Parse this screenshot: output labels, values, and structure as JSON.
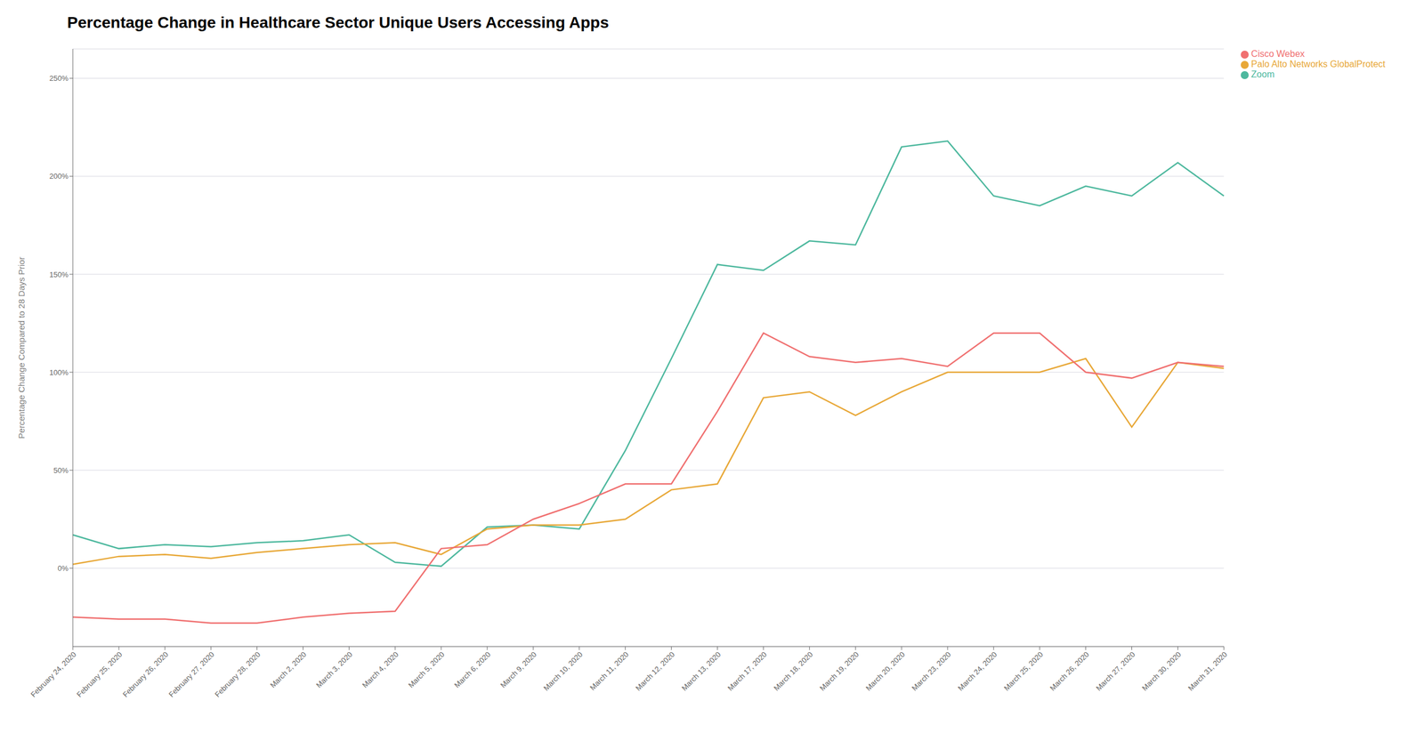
{
  "chart_data": {
    "type": "line",
    "title": "Percentage Change in Healthcare Sector Unique Users Accessing Apps",
    "ylabel": "Percentage Change Compared to 28 Days Prior",
    "categories": [
      "February 24, 2020",
      "February 25, 2020",
      "February 26, 2020",
      "February 27, 2020",
      "February 28, 2020",
      "March 2, 2020",
      "March 3, 2020",
      "March 4, 2020",
      "March 5, 2020",
      "March 6, 2020",
      "March 9, 2020",
      "March 10, 2020",
      "March 11, 2020",
      "March 12, 2020",
      "March 13, 2020",
      "March 17, 2020",
      "March 18, 2020",
      "March 19, 2020",
      "March 20, 2020",
      "March 23, 2020",
      "March 24, 2020",
      "March 25, 2020",
      "March 26, 2020",
      "March 27, 2020",
      "March 30, 2020",
      "March 31, 2020"
    ],
    "series": [
      {
        "name": "Zoom",
        "color": "#4db89e",
        "values": [
          17,
          10,
          12,
          11,
          13,
          14,
          17,
          3,
          1,
          21,
          22,
          20,
          60,
          107,
          155,
          152,
          167,
          165,
          215,
          218,
          190,
          185,
          195,
          190,
          207,
          190
        ]
      },
      {
        "name": "Palo Alto Networks GlobalProtect",
        "color": "#e8a838",
        "values": [
          2,
          6,
          7,
          5,
          8,
          10,
          12,
          13,
          7,
          20,
          22,
          22,
          25,
          40,
          43,
          87,
          90,
          78,
          90,
          100,
          100,
          100,
          107,
          72,
          105,
          102
        ]
      },
      {
        "name": "Cisco Webex",
        "color": "#f07070",
        "values": [
          -25,
          -26,
          -26,
          -28,
          -28,
          -25,
          -23,
          -22,
          10,
          12,
          25,
          33,
          43,
          43,
          80,
          120,
          108,
          105,
          107,
          103,
          120,
          120,
          100,
          97,
          105,
          103
        ]
      }
    ],
    "ylim": [
      -40,
      265
    ],
    "yticks": [
      {
        "value": 0,
        "label": "0%"
      },
      {
        "value": 50,
        "label": "50%"
      },
      {
        "value": 100,
        "label": "100%"
      },
      {
        "value": 150,
        "label": "150%"
      },
      {
        "value": 200,
        "label": "200%"
      },
      {
        "value": 250,
        "label": "250%"
      }
    ],
    "grid": "y",
    "legend": "right"
  }
}
